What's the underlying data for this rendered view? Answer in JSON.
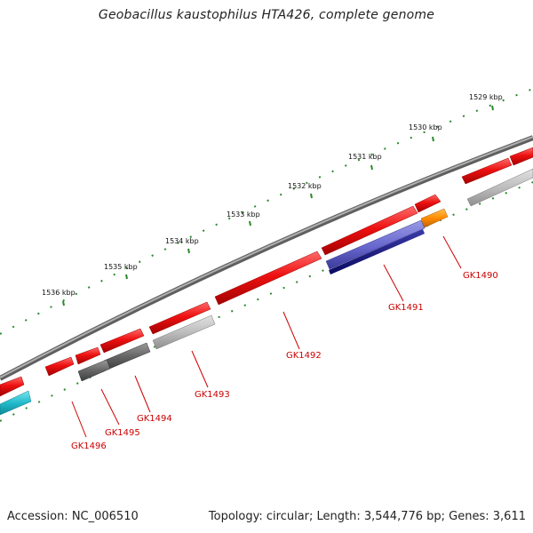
{
  "title": "Geobacillus kaustophilus HTA426, complete genome",
  "accession": "Accession: NC_006510",
  "summary": "Topology: circular; Length: 3,544,776 bp; Genes: 3,611",
  "colors": {
    "backbone": "#8a8a8a",
    "tick": "#2a8a2a",
    "label": "#cc0000",
    "cds_red": "#ee1111",
    "cds_gray_light": "#b8b8b8",
    "cds_gray_dark": "#666666",
    "cds_orange": "#ff8c00",
    "cds_navy": "#1a1a8c",
    "cds_cyan": "#22bbcc"
  },
  "kbp_labels": [
    "1529 kbp",
    "1530 kbp",
    "1531 kbp",
    "1532 kbp",
    "1533 kbp",
    "1534 kbp",
    "1535 kbp",
    "1536 kbp"
  ],
  "gene_labels": [
    "GK1490",
    "GK1491",
    "GK1492",
    "GK1493",
    "GK1494",
    "GK1495",
    "GK1496"
  ]
}
